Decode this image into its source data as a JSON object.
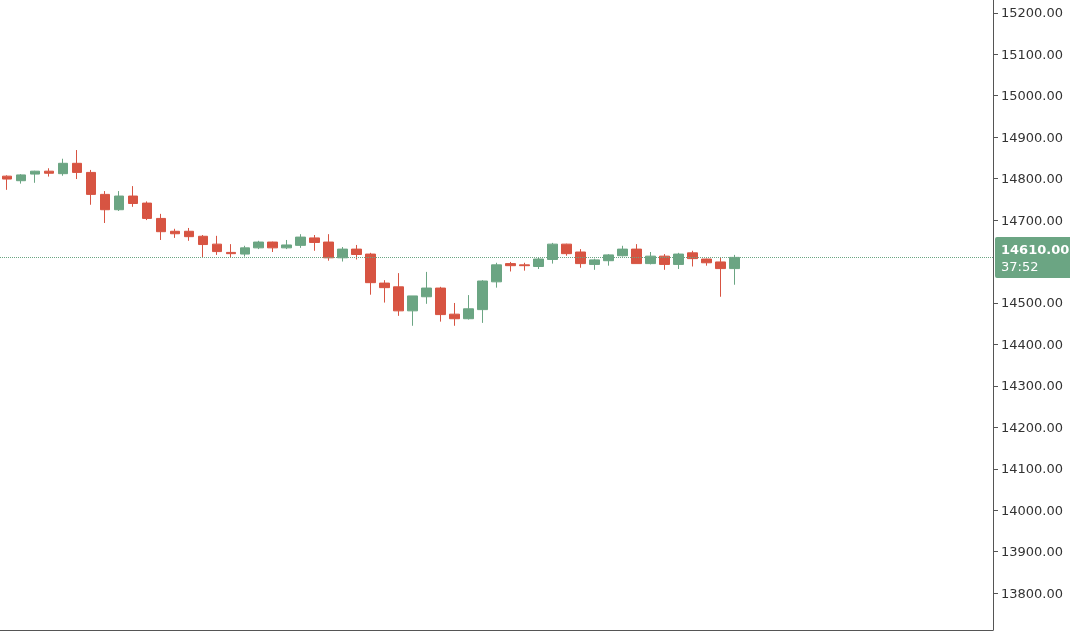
{
  "chart_data": {
    "type": "candlestick",
    "categories": [
      null,
      null,
      null,
      null,
      null,
      null,
      null,
      null,
      null,
      null,
      null,
      null,
      null,
      null,
      null,
      null,
      null,
      null,
      null,
      null,
      null,
      null,
      null,
      null,
      null,
      null,
      null,
      null,
      null,
      null,
      null,
      null,
      null,
      null,
      null,
      null,
      null,
      null,
      null,
      null,
      null,
      null,
      null,
      null,
      null,
      null,
      null,
      null,
      null,
      null,
      null,
      null,
      null,
      null,
      null,
      null,
      null,
      null,
      null,
      null,
      null,
      null,
      null,
      null,
      null,
      null,
      null,
      null,
      null,
      null,
      null
    ],
    "ohlc": [
      [
        14806,
        14808,
        14773,
        14799
      ],
      [
        14795,
        14811,
        14788,
        14809
      ],
      [
        14811,
        14819,
        14790,
        14818
      ],
      [
        14818,
        14825,
        14805,
        14813
      ],
      [
        14812,
        14848,
        14807,
        14837
      ],
      [
        14837,
        14869,
        14799,
        14815
      ],
      [
        14815,
        14821,
        14737,
        14762
      ],
      [
        14762,
        14770,
        14693,
        14725
      ],
      [
        14725,
        14770,
        14722,
        14758
      ],
      [
        14758,
        14782,
        14732,
        14740
      ],
      [
        14741,
        14745,
        14700,
        14704
      ],
      [
        14704,
        14715,
        14652,
        14672
      ],
      [
        14673,
        14679,
        14657,
        14667
      ],
      [
        14673,
        14681,
        14650,
        14660
      ],
      [
        14661,
        14664,
        14609,
        14641
      ],
      [
        14642,
        14662,
        14616,
        14624
      ],
      [
        14622,
        14642,
        14611,
        14619
      ],
      [
        14618,
        14638,
        14612,
        14633
      ],
      [
        14633,
        14650,
        14630,
        14647
      ],
      [
        14647,
        14648,
        14623,
        14633
      ],
      [
        14633,
        14652,
        14630,
        14640
      ],
      [
        14639,
        14666,
        14633,
        14659
      ],
      [
        14657,
        14664,
        14626,
        14646
      ],
      [
        14647,
        14666,
        14602,
        14609
      ],
      [
        14609,
        14635,
        14600,
        14630
      ],
      [
        14630,
        14640,
        14605,
        14617
      ],
      [
        14618,
        14621,
        14520,
        14549
      ],
      [
        14548,
        14555,
        14501,
        14537
      ],
      [
        14539,
        14572,
        14469,
        14481
      ],
      [
        14481,
        14517,
        14445,
        14517
      ],
      [
        14515,
        14575,
        14498,
        14536
      ],
      [
        14536,
        14539,
        14455,
        14472
      ],
      [
        14473,
        14500,
        14445,
        14462
      ],
      [
        14462,
        14519,
        14460,
        14486
      ],
      [
        14484,
        14555,
        14452,
        14553
      ],
      [
        14551,
        14597,
        14537,
        14592
      ],
      [
        14595,
        14599,
        14576,
        14590
      ],
      [
        14592,
        14597,
        14578,
        14590
      ],
      [
        14588,
        14610,
        14582,
        14606
      ],
      [
        14605,
        14645,
        14595,
        14642
      ],
      [
        14642,
        14643,
        14614,
        14619
      ],
      [
        14623,
        14630,
        14585,
        14595
      ],
      [
        14593,
        14607,
        14580,
        14604
      ],
      [
        14602,
        14618,
        14590,
        14616
      ],
      [
        14614,
        14638,
        14612,
        14630
      ],
      [
        14630,
        14642,
        14595,
        14595
      ],
      [
        14595,
        14623,
        14593,
        14613
      ],
      [
        14613,
        14618,
        14580,
        14593
      ],
      [
        14593,
        14621,
        14582,
        14618
      ],
      [
        14621,
        14626,
        14588,
        14607
      ],
      [
        14606,
        14607,
        14590,
        14597
      ],
      [
        14599,
        14609,
        14515,
        14583
      ],
      [
        14583,
        14616,
        14544,
        14610
      ],
      null,
      null,
      null,
      null,
      null,
      null,
      null,
      null,
      null,
      null,
      null,
      null,
      null,
      null,
      null,
      null,
      null,
      null
    ],
    "colors": [
      "#d75442",
      "#6ba583",
      "#6ba583",
      "#d75442",
      "#6ba583",
      "#d75442",
      "#d75442",
      "#d75442",
      "#6ba583",
      "#d75442",
      "#d75442",
      "#d75442",
      "#d75442",
      "#d75442",
      "#d75442",
      "#d75442",
      "#d75442",
      "#6ba583",
      "#6ba583",
      "#d75442",
      "#6ba583",
      "#6ba583",
      "#d75442",
      "#d75442",
      "#6ba583",
      "#d75442",
      "#d75442",
      "#d75442",
      "#d75442",
      "#6ba583",
      "#6ba583",
      "#d75442",
      "#d75442",
      "#6ba583",
      "#6ba583",
      "#6ba583",
      "#d75442",
      "#d75442",
      "#6ba583",
      "#6ba583",
      "#d75442",
      "#d75442",
      "#6ba583",
      "#6ba583",
      "#6ba583",
      "#d75442",
      "#6ba583",
      "#d75442",
      "#6ba583",
      "#d75442",
      "#d75442",
      "#d75442",
      "#6ba583",
      null,
      null,
      null,
      null,
      null,
      null,
      null,
      null,
      null,
      null,
      null,
      null,
      null,
      null,
      null,
      null,
      null,
      null
    ],
    "ylim": [
      13711,
      15231
    ],
    "yticks": [
      {
        "value": 13800,
        "label": "13800.00"
      },
      {
        "value": 13900,
        "label": "13900.00"
      },
      {
        "value": 14000,
        "label": "14000.00"
      },
      {
        "value": 14100,
        "label": "14100.00"
      },
      {
        "value": 14200,
        "label": "14200.00"
      },
      {
        "value": 14300,
        "label": "14300.00"
      },
      {
        "value": 14400,
        "label": "14400.00"
      },
      {
        "value": 14500,
        "label": "14500.00"
      },
      {
        "value": 14700,
        "label": "14700.00"
      },
      {
        "value": 14800,
        "label": "14800.00"
      },
      {
        "value": 14900,
        "label": "14900.00"
      },
      {
        "value": 15000,
        "label": "15000.00"
      },
      {
        "value": 15100,
        "label": "15100.00"
      },
      {
        "value": 15200,
        "label": "15200.00"
      }
    ],
    "ref_lines": [
      {
        "axis": "y",
        "value": 14610,
        "label": "14610.00",
        "color": "#6ba583",
        "line_style": "dotted"
      }
    ],
    "annotations": [
      "37:52"
    ],
    "grid": false,
    "tick_labels": "y"
  }
}
